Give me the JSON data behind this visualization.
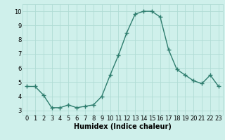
{
  "x": [
    0,
    1,
    2,
    3,
    4,
    5,
    6,
    7,
    8,
    9,
    10,
    11,
    12,
    13,
    14,
    15,
    16,
    17,
    18,
    19,
    20,
    21,
    22,
    23
  ],
  "y": [
    4.7,
    4.7,
    4.1,
    3.2,
    3.2,
    3.4,
    3.2,
    3.3,
    3.4,
    4.0,
    5.5,
    6.9,
    8.5,
    9.8,
    10.0,
    10.0,
    9.6,
    7.3,
    5.9,
    5.5,
    5.1,
    4.9,
    5.5,
    4.7
  ],
  "line_color": "#2e7d6e",
  "marker": "+",
  "marker_size": 4,
  "marker_lw": 1.0,
  "line_width": 1.0,
  "bg_color": "#cff0eb",
  "grid_color": "#b0dcd5",
  "xlabel": "Humidex (Indice chaleur)",
  "xlabel_fontsize": 7,
  "tick_fontsize": 6,
  "xlim": [
    -0.5,
    23.5
  ],
  "ylim": [
    2.7,
    10.5
  ],
  "yticks": [
    3,
    4,
    5,
    6,
    7,
    8,
    9,
    10
  ],
  "xticks": [
    0,
    1,
    2,
    3,
    4,
    5,
    6,
    7,
    8,
    9,
    10,
    11,
    12,
    13,
    14,
    15,
    16,
    17,
    18,
    19,
    20,
    21,
    22,
    23
  ]
}
